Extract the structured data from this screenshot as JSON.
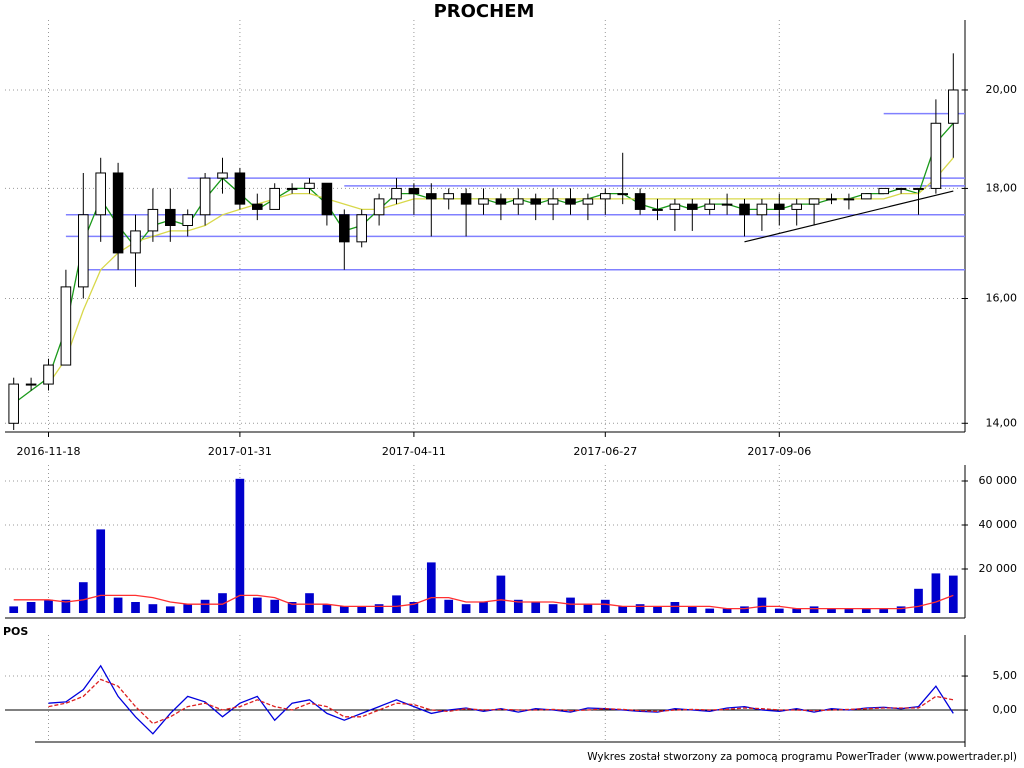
{
  "footer": "Wykres został stworzony za pomocą programu PowerTrader (www.powertrader.pl)",
  "chart_data": [
    {
      "type": "candlestick",
      "title": "PROCHEM",
      "log": true,
      "grid": true,
      "categories": [
        null,
        null,
        "2016-11-18",
        null,
        null,
        null,
        null,
        null,
        null,
        null,
        null,
        null,
        null,
        "2017-01-31",
        null,
        null,
        null,
        null,
        null,
        null,
        null,
        null,
        null,
        "2017-04-11",
        null,
        null,
        null,
        null,
        null,
        null,
        null,
        null,
        null,
        null,
        "2017-06-27",
        null,
        null,
        null,
        null,
        null,
        null,
        null,
        null,
        null,
        "2017-09-06",
        null,
        null,
        null,
        null,
        null,
        null,
        null,
        null,
        null,
        null
      ],
      "open": [
        14.0,
        14.6,
        14.6,
        14.9,
        16.2,
        17.5,
        18.3,
        16.8,
        17.2,
        17.6,
        17.3,
        17.5,
        18.2,
        18.3,
        17.7,
        17.6,
        18.0,
        18.0,
        18.1,
        17.5,
        17.0,
        17.5,
        17.8,
        18.0,
        17.9,
        17.8,
        17.9,
        17.7,
        17.8,
        17.7,
        17.8,
        17.7,
        17.8,
        17.7,
        17.8,
        17.9,
        17.9,
        17.6,
        17.6,
        17.7,
        17.6,
        17.7,
        17.7,
        17.5,
        17.7,
        17.6,
        17.7,
        17.8,
        17.8,
        17.8,
        17.9,
        18.0,
        18.0,
        18.0,
        19.3
      ],
      "high": [
        14.7,
        14.7,
        15.0,
        16.5,
        18.3,
        18.6,
        18.5,
        17.5,
        18.0,
        18.0,
        17.6,
        18.3,
        18.6,
        18.4,
        17.9,
        18.1,
        18.1,
        18.2,
        18.1,
        17.6,
        17.6,
        17.9,
        18.2,
        18.1,
        18.1,
        18.0,
        18.0,
        18.0,
        17.9,
        18.0,
        17.9,
        18.0,
        18.0,
        17.9,
        18.0,
        18.7,
        18.0,
        17.8,
        17.8,
        17.8,
        17.8,
        17.9,
        17.8,
        17.8,
        17.9,
        17.8,
        17.8,
        17.9,
        17.9,
        17.9,
        18.0,
        18.0,
        18.0,
        19.8,
        20.8
      ],
      "low": [
        13.9,
        14.5,
        14.5,
        14.9,
        16.0,
        17.0,
        16.5,
        16.2,
        17.0,
        17.0,
        17.1,
        17.3,
        17.9,
        17.6,
        17.4,
        17.6,
        17.9,
        17.9,
        17.3,
        16.5,
        16.9,
        17.3,
        17.7,
        17.5,
        17.1,
        17.6,
        17.1,
        17.5,
        17.4,
        17.5,
        17.4,
        17.4,
        17.5,
        17.4,
        17.5,
        17.7,
        17.5,
        17.4,
        17.2,
        17.2,
        17.5,
        17.5,
        17.1,
        17.2,
        17.3,
        17.3,
        17.3,
        17.7,
        17.6,
        17.8,
        17.9,
        17.9,
        17.5,
        17.9,
        18.6
      ],
      "close": [
        14.6,
        14.6,
        14.9,
        16.2,
        17.5,
        18.3,
        16.8,
        17.2,
        17.6,
        17.3,
        17.5,
        18.2,
        18.3,
        17.7,
        17.6,
        18.0,
        18.0,
        18.1,
        17.5,
        17.0,
        17.5,
        17.8,
        18.0,
        17.9,
        17.8,
        17.9,
        17.7,
        17.8,
        17.7,
        17.8,
        17.7,
        17.8,
        17.7,
        17.8,
        17.9,
        17.9,
        17.6,
        17.6,
        17.7,
        17.6,
        17.7,
        17.7,
        17.5,
        17.7,
        17.6,
        17.7,
        17.8,
        17.8,
        17.8,
        17.9,
        18.0,
        18.0,
        18.0,
        19.3,
        20.0
      ],
      "up_color": "#ffffff",
      "down_color": "#000000",
      "lines": [
        {
          "color": "#1a9a1a",
          "values": [
            14.3,
            14.5,
            14.7,
            15.5,
            17.0,
            17.8,
            17.3,
            16.9,
            17.3,
            17.4,
            17.3,
            17.8,
            18.2,
            17.9,
            17.6,
            17.8,
            18.0,
            18.0,
            17.7,
            17.2,
            17.3,
            17.6,
            17.9,
            17.9,
            17.8,
            17.8,
            17.8,
            17.8,
            17.7,
            17.8,
            17.7,
            17.8,
            17.7,
            17.8,
            17.9,
            17.9,
            17.7,
            17.6,
            17.7,
            17.6,
            17.7,
            17.7,
            17.6,
            17.6,
            17.6,
            17.7,
            17.7,
            17.8,
            17.8,
            17.9,
            17.9,
            18.0,
            17.9,
            18.9,
            19.3
          ]
        },
        {
          "color": "#d8d84a",
          "values": [
            null,
            null,
            14.6,
            15.0,
            15.8,
            16.5,
            16.8,
            17.0,
            17.1,
            17.2,
            17.2,
            17.3,
            17.5,
            17.6,
            17.7,
            17.8,
            17.9,
            17.9,
            17.8,
            17.7,
            17.6,
            17.6,
            17.7,
            17.8,
            17.8,
            17.8,
            17.8,
            17.8,
            17.8,
            17.8,
            17.8,
            17.8,
            17.8,
            17.8,
            17.8,
            17.8,
            17.8,
            17.8,
            17.8,
            17.8,
            17.8,
            17.8,
            17.8,
            17.8,
            17.8,
            17.8,
            17.8,
            17.8,
            17.8,
            17.8,
            17.8,
            17.9,
            17.9,
            18.2,
            18.6
          ]
        }
      ],
      "levels": [
        {
          "value": 18.2,
          "start": 10
        },
        {
          "value": 18.05,
          "start": 19
        },
        {
          "value": 17.5,
          "start": 3
        },
        {
          "value": 17.1,
          "start": 3
        },
        {
          "value": 16.5,
          "start": 4
        },
        {
          "value": 19.5,
          "start": 50
        }
      ],
      "level_color": "#8080ff",
      "trendline": {
        "start": 42,
        "end": 54,
        "values": [
          17.0,
          17.95
        ]
      },
      "ylim": [
        13.87,
        21.44
      ],
      "yticks": [
        {
          "value": 14,
          "label": "14,00"
        },
        {
          "value": 16,
          "label": "16,00"
        },
        {
          "value": 18,
          "label": "18,00"
        },
        {
          "value": 20,
          "label": "20,00"
        }
      ]
    },
    {
      "type": "bar",
      "color": "#0000cc",
      "values": [
        3000,
        5000,
        6000,
        6000,
        14000,
        38000,
        7000,
        5000,
        4000,
        3000,
        4000,
        6000,
        9000,
        61000,
        7000,
        6000,
        5000,
        9000,
        4000,
        3000,
        3000,
        4000,
        8000,
        5000,
        23000,
        6000,
        4000,
        5000,
        17000,
        6000,
        5000,
        4000,
        7000,
        4000,
        6000,
        3000,
        4000,
        3000,
        5000,
        3000,
        2000,
        2000,
        3000,
        7000,
        2000,
        2000,
        3000,
        2000,
        2000,
        2000,
        2000,
        3000,
        11000,
        18000,
        17000
      ],
      "lines": [
        {
          "color": "#ff3030",
          "values": [
            6000,
            6000,
            6000,
            5000,
            6000,
            8000,
            8000,
            8000,
            7000,
            5000,
            4000,
            4000,
            4000,
            8000,
            8000,
            7000,
            4000,
            4000,
            4000,
            3000,
            3000,
            3000,
            3000,
            4000,
            7000,
            7000,
            5000,
            5000,
            6000,
            5000,
            5000,
            5000,
            4000,
            4000,
            4000,
            3000,
            3000,
            3000,
            3000,
            3000,
            3000,
            2000,
            2000,
            3000,
            3000,
            2000,
            2000,
            2000,
            2000,
            2000,
            2000,
            2000,
            3000,
            5000,
            8000
          ]
        }
      ],
      "ylim": [
        0,
        65000
      ],
      "yticks": [
        {
          "value": 20000,
          "label": "20 000"
        },
        {
          "value": 40000,
          "label": "40 000"
        },
        {
          "value": 60000,
          "label": "60 000"
        }
      ]
    },
    {
      "type": "line",
      "title": "POS",
      "series": [
        {
          "color": "#0000dd",
          "values": [
            null,
            null,
            1,
            1.2,
            3,
            6.5,
            2,
            -1,
            -3.5,
            -0.5,
            2,
            1.2,
            -1,
            1,
            2,
            -1.5,
            1,
            1.5,
            -0.5,
            -1.5,
            -0.5,
            0.5,
            1.5,
            0.5,
            -0.5,
            0,
            0.3,
            -0.2,
            0.2,
            -0.3,
            0.2,
            0,
            -0.3,
            0.3,
            0.2,
            0,
            -0.2,
            -0.3,
            0.2,
            0,
            -0.2,
            0.3,
            0.5,
            0,
            -0.2,
            0.2,
            -0.3,
            0.2,
            0,
            0.3,
            0.4,
            0.2,
            0.5,
            3.5,
            -0.5
          ]
        },
        {
          "color": "#dd2020",
          "dash": true,
          "values": [
            null,
            null,
            0.5,
            1,
            2,
            4.5,
            3.5,
            0.5,
            -2,
            -1,
            0.5,
            1,
            0,
            0.5,
            1.5,
            0.5,
            0,
            1,
            0.5,
            -1,
            -1,
            0,
            1,
            0.8,
            0,
            -0.2,
            0.2,
            0,
            0.1,
            0,
            0,
            0.1,
            -0.1,
            0,
            0.2,
            0.1,
            -0.1,
            -0.2,
            0,
            0.1,
            0,
            0.1,
            0.3,
            0.2,
            0,
            0,
            -0.1,
            0,
            0.1,
            0.2,
            0.3,
            0.3,
            0.3,
            2,
            1.5
          ]
        }
      ],
      "ylim": [
        -4.7,
        10.3
      ],
      "yticks": [
        {
          "value": 0,
          "label": "0,00"
        },
        {
          "value": 5,
          "label": "5,00"
        }
      ]
    }
  ]
}
